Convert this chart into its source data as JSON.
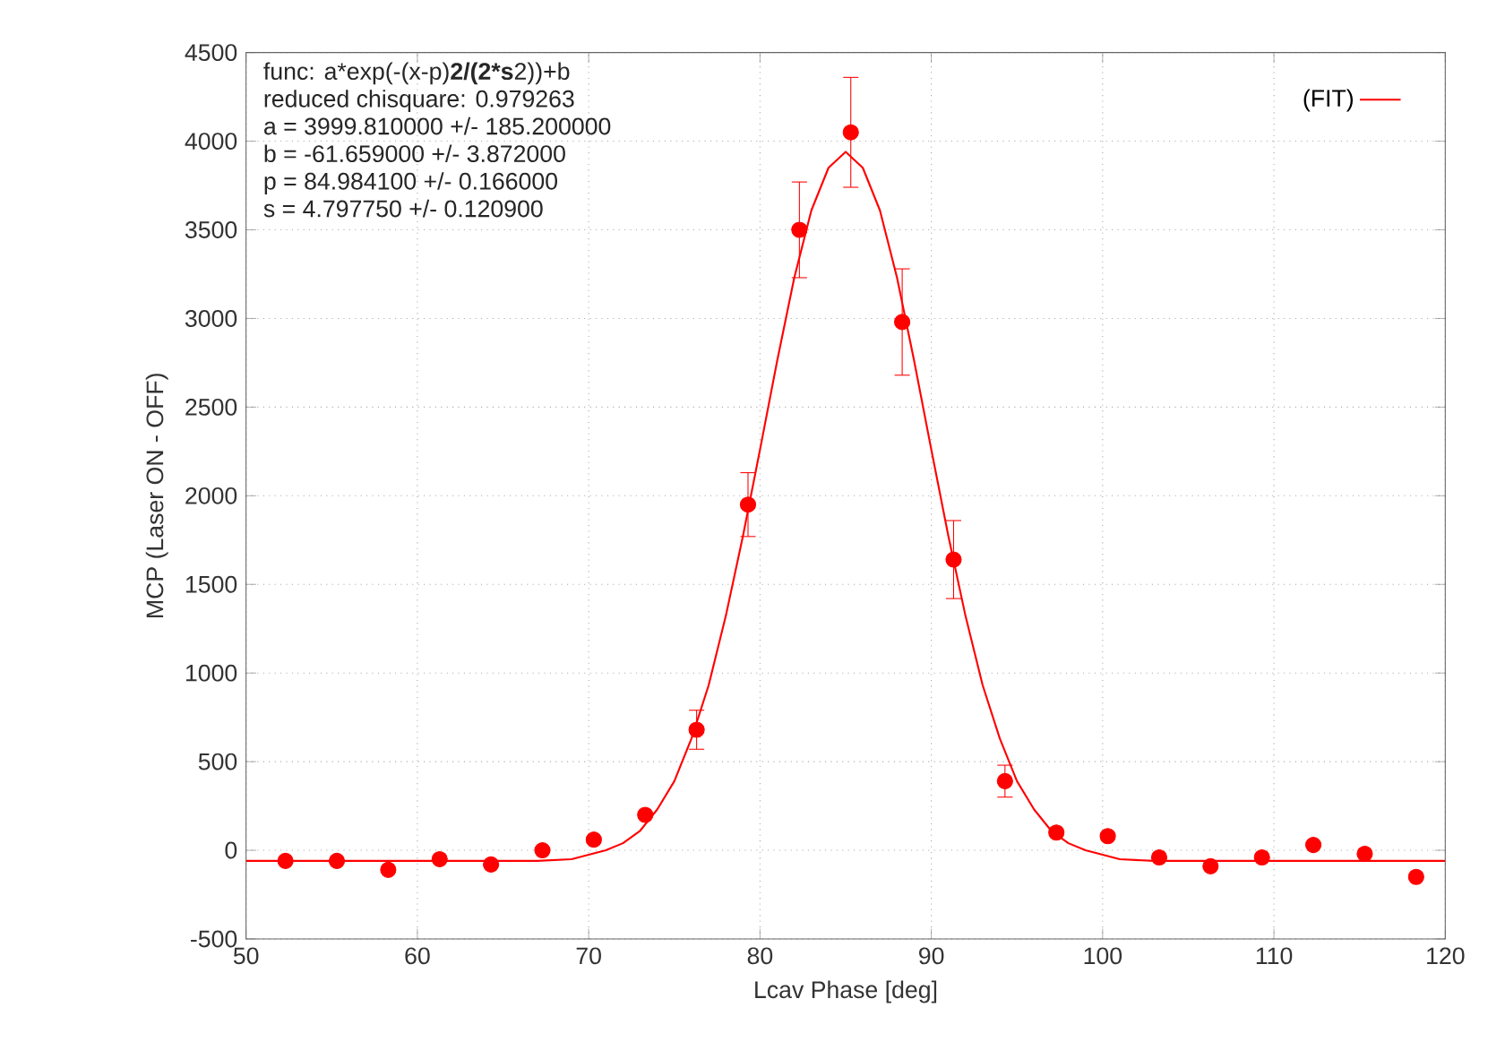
{
  "chart_data": {
    "type": "scatter",
    "xlabel": "Lcav Phase [deg]",
    "ylabel": "MCP (Laser ON - OFF)",
    "annotations": [
      "func: a*exp(-(x-p)**2/(2*s**2))+b",
      "reduced chisquare: 0.979263",
      "a = 3999.810000 +/- 185.200000",
      "b = -61.659000 +/- 3.872000",
      "p = 84.984100 +/- 0.166000",
      "s = 4.797750 +/- 0.120900"
    ],
    "xlim": [
      50,
      120
    ],
    "ylim": [
      -500,
      4500
    ],
    "xticks": [
      50,
      60,
      70,
      80,
      90,
      100,
      110,
      120
    ],
    "yticks": [
      -500,
      0,
      500,
      1000,
      1500,
      2000,
      2500,
      3000,
      3500,
      4000,
      4500
    ],
    "grid": true,
    "legend": "top right",
    "series": [
      {
        "type": "scatter",
        "color": "#ff0000",
        "marker": "circle",
        "x": [
          52.3,
          55.3,
          58.3,
          61.3,
          64.3,
          67.3,
          70.3,
          73.3,
          76.3,
          79.3,
          82.3,
          85.3,
          88.3,
          91.3,
          94.3,
          97.3,
          100.3,
          103.3,
          106.3,
          109.3,
          112.3,
          115.3,
          118.3
        ],
        "values": [
          -60,
          -60,
          -110,
          -50,
          -80,
          0,
          60,
          200,
          680,
          1950,
          3500,
          4050,
          2980,
          1640,
          390,
          100,
          80,
          -40,
          -90,
          -40,
          30,
          -20,
          -150
        ],
        "errors": [
          null,
          null,
          null,
          null,
          null,
          null,
          null,
          null,
          110,
          180,
          270,
          310,
          300,
          220,
          90,
          null,
          null,
          null,
          null,
          null,
          null,
          null,
          null
        ]
      },
      {
        "type": "line",
        "name": "(FIT)",
        "color": "#ff0000",
        "marker": "none",
        "line_style": "solid",
        "x": [
          50,
          57,
          63,
          67,
          69,
          71,
          72,
          73,
          74,
          75,
          76,
          77,
          78,
          79,
          80,
          81,
          82,
          83,
          84,
          85,
          86,
          87,
          88,
          89,
          90,
          91,
          92,
          93,
          94,
          95,
          96,
          97,
          98,
          99,
          101,
          103,
          107,
          113,
          120
        ],
        "values": [
          -60,
          -60,
          -60,
          -60,
          -50,
          0,
          40,
          110,
          230,
          390,
          630,
          930,
          1320,
          1770,
          2260,
          2760,
          3230,
          3610,
          3850,
          3940,
          3850,
          3610,
          3230,
          2760,
          2260,
          1770,
          1320,
          930,
          630,
          390,
          230,
          110,
          40,
          0,
          -50,
          -60,
          -60,
          -60,
          -60
        ]
      }
    ]
  }
}
